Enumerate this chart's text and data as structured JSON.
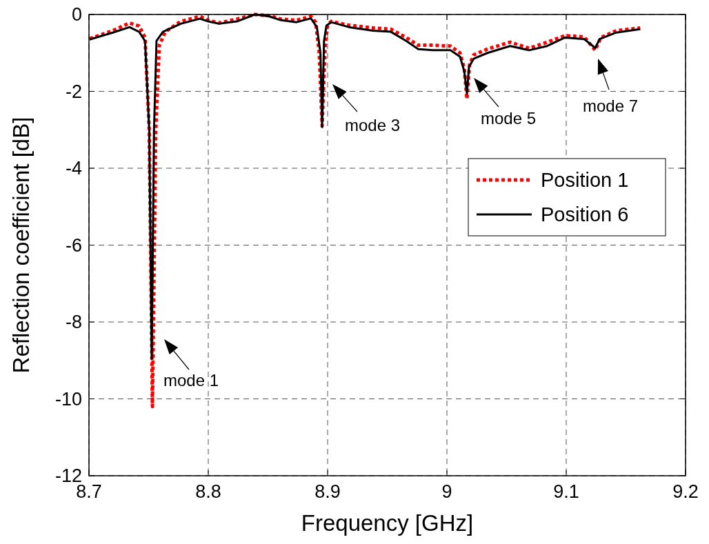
{
  "chart_data": {
    "type": "line",
    "xlabel": "Frequency [GHz]",
    "ylabel": "Reflection coefficient [dB]",
    "xlim": [
      8.7,
      9.2
    ],
    "ylim": [
      -12,
      0
    ],
    "xticks": [
      8.7,
      8.8,
      8.9,
      9,
      9.1,
      9.2
    ],
    "yticks": [
      -12,
      -10,
      -8,
      -6,
      -4,
      -2,
      0
    ],
    "grid": true,
    "legend": "top right",
    "series": [
      {
        "name": "Position 1",
        "color": "#ff0000",
        "line_style": "dotted",
        "x": [
          8.7006,
          8.72,
          8.734,
          8.742,
          8.747,
          8.7505,
          8.7532,
          8.756,
          8.759,
          8.764,
          8.777,
          8.793,
          8.8,
          8.809,
          8.824,
          8.839,
          8.851,
          8.861,
          8.874,
          8.886,
          8.89,
          8.893,
          8.8954,
          8.898,
          8.9,
          8.903,
          8.918,
          8.938,
          8.953,
          8.966,
          8.976,
          8.988,
          9.003,
          9.011,
          9.0145,
          9.0168,
          9.019,
          9.0225,
          9.034,
          9.053,
          9.069,
          9.084,
          9.099,
          9.115,
          9.1243,
          9.129,
          9.142,
          9.162
        ],
        "values": [
          -0.63,
          -0.42,
          -0.22,
          -0.3,
          -0.6,
          -3.0,
          -10.2,
          -3.0,
          -0.8,
          -0.45,
          -0.18,
          -0.05,
          -0.15,
          -0.22,
          -0.12,
          0,
          -0.03,
          -0.12,
          -0.15,
          -0.05,
          -0.2,
          -1.0,
          -2.9,
          -0.8,
          -0.28,
          -0.18,
          -0.28,
          -0.35,
          -0.38,
          -0.6,
          -0.8,
          -0.8,
          -0.82,
          -1.0,
          -1.4,
          -2.2,
          -1.3,
          -1.05,
          -0.9,
          -0.72,
          -0.88,
          -0.72,
          -0.55,
          -0.58,
          -0.93,
          -0.6,
          -0.42,
          -0.35
        ]
      },
      {
        "name": "Position 6",
        "color": "#000000",
        "line_style": "solid",
        "x": [
          8.7006,
          8.72,
          8.734,
          8.742,
          8.747,
          8.7505,
          8.7526,
          8.7545,
          8.7566,
          8.762,
          8.777,
          8.793,
          8.8,
          8.809,
          8.824,
          8.839,
          8.851,
          8.861,
          8.874,
          8.886,
          8.891,
          8.894,
          8.8954,
          8.897,
          8.899,
          8.903,
          8.918,
          8.938,
          8.953,
          8.966,
          8.976,
          8.988,
          9.003,
          9.011,
          9.0145,
          9.0168,
          9.0185,
          9.0225,
          9.034,
          9.053,
          9.069,
          9.084,
          9.099,
          9.115,
          9.1243,
          9.128,
          9.142,
          9.162
        ],
        "values": [
          -0.65,
          -0.47,
          -0.33,
          -0.45,
          -0.69,
          -3.0,
          -8.96,
          -3.0,
          -0.69,
          -0.45,
          -0.24,
          -0.11,
          -0.18,
          -0.24,
          -0.18,
          0,
          -0.05,
          -0.15,
          -0.2,
          -0.1,
          -0.33,
          -1.0,
          -2.93,
          -0.69,
          -0.29,
          -0.2,
          -0.33,
          -0.42,
          -0.45,
          -0.69,
          -0.9,
          -0.93,
          -0.93,
          -1.1,
          -1.47,
          -2.05,
          -1.36,
          -1.15,
          -1.0,
          -0.82,
          -0.93,
          -0.82,
          -0.6,
          -0.64,
          -0.87,
          -0.64,
          -0.47,
          -0.38
        ]
      }
    ],
    "annotations": [
      "mode 1",
      "mode 3",
      "mode 5",
      "mode 7"
    ]
  }
}
